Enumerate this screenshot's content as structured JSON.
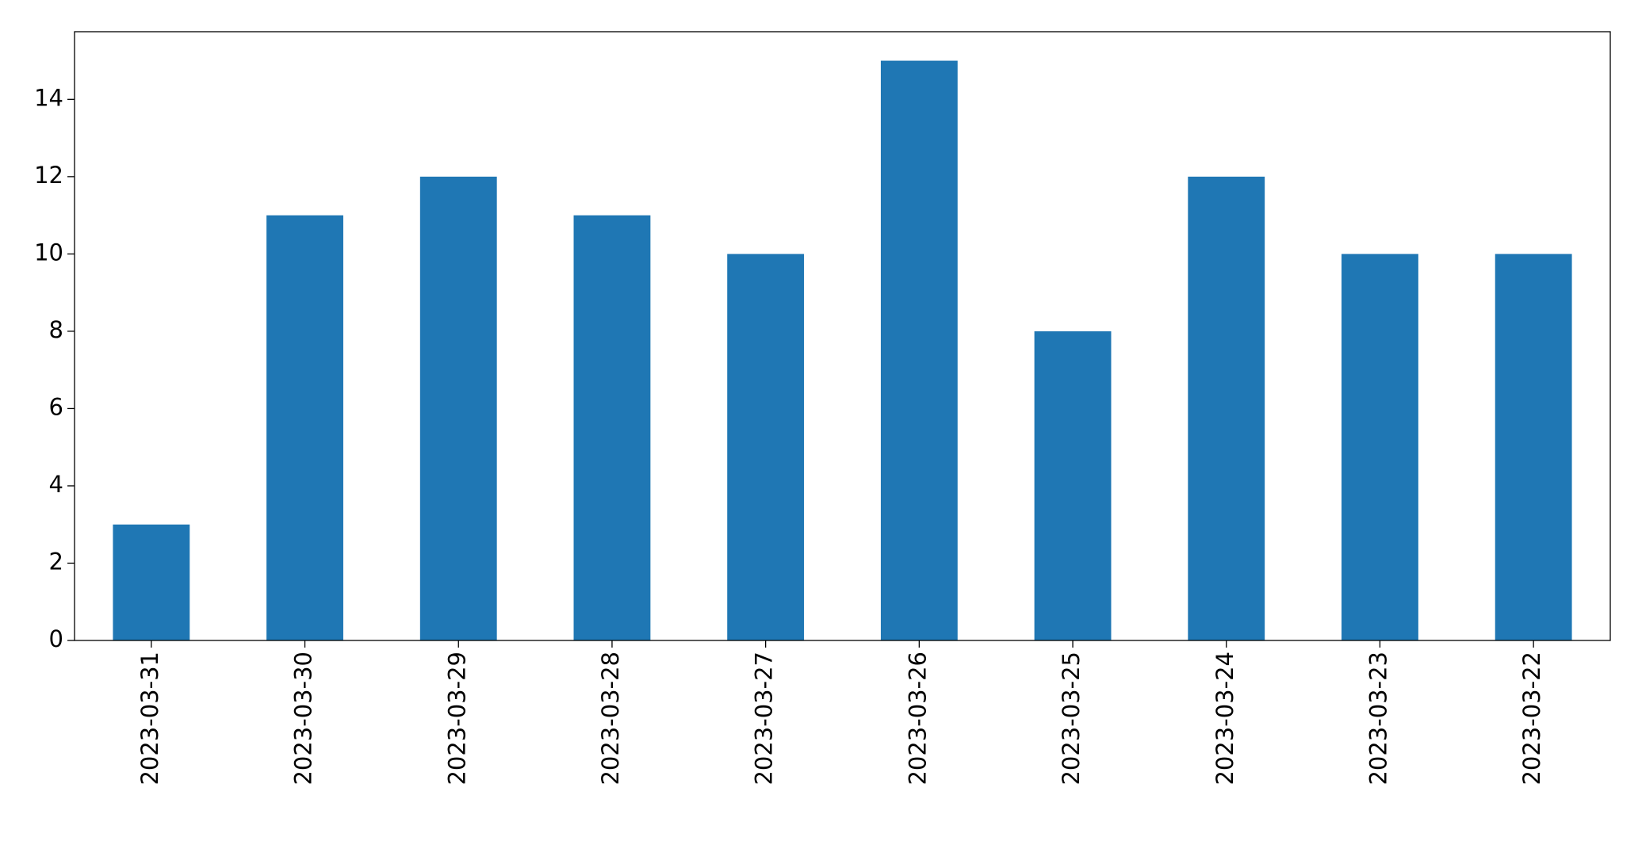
{
  "chart_data": {
    "type": "bar",
    "categories": [
      "2023-03-31",
      "2023-03-30",
      "2023-03-29",
      "2023-03-28",
      "2023-03-27",
      "2023-03-26",
      "2023-03-25",
      "2023-03-24",
      "2023-03-23",
      "2023-03-22"
    ],
    "values": [
      3,
      11,
      12,
      11,
      10,
      15,
      8,
      12,
      10,
      10
    ],
    "color": "#1f77b4",
    "ylim": [
      0,
      15.75
    ],
    "yticks": [
      0,
      2,
      4,
      6,
      8,
      10,
      12,
      14
    ],
    "grid": false
  }
}
